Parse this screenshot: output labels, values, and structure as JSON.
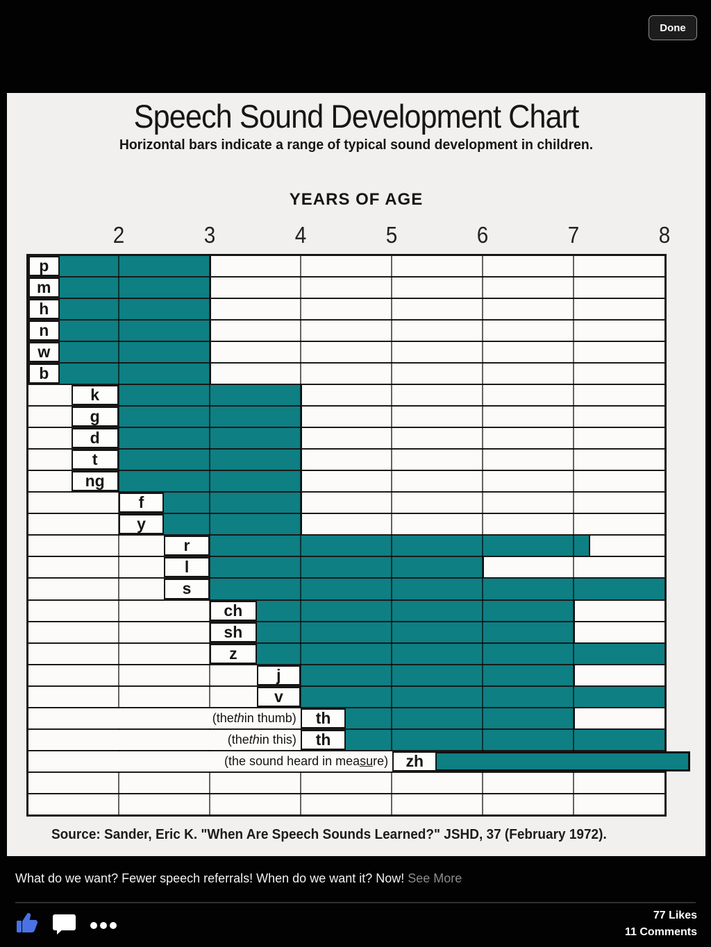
{
  "viewer": {
    "done_label": "Done"
  },
  "chart_data": {
    "type": "bar",
    "variant": "horizontal-range-gantt",
    "title": "Speech Sound Development Chart",
    "subtitle": "Horizontal bars indicate a range of typical sound development in children.",
    "xlabel": "YEARS OF AGE",
    "x_ticks": [
      2,
      3,
      4,
      5,
      6,
      7,
      8
    ],
    "xlim": [
      1.01,
      8.3
    ],
    "grid": "vertical-year-lines",
    "bar_color": "#0e7f83",
    "source": "Source:  Sander, Eric K. \"When Are Speech Sounds Learned?\" JSHD, 37  (February 1972).",
    "rows": [
      {
        "label": "p",
        "cell": [
          1.01,
          1.35
        ],
        "bar": [
          1.35,
          3
        ]
      },
      {
        "label": "m",
        "cell": [
          1.01,
          1.35
        ],
        "bar": [
          1.35,
          3
        ]
      },
      {
        "label": "h",
        "cell": [
          1.01,
          1.35
        ],
        "bar": [
          1.35,
          3
        ]
      },
      {
        "label": "n",
        "cell": [
          1.01,
          1.35
        ],
        "bar": [
          1.35,
          3
        ]
      },
      {
        "label": "w",
        "cell": [
          1.01,
          1.35
        ],
        "bar": [
          1.35,
          3
        ]
      },
      {
        "label": "b",
        "cell": [
          1.01,
          1.35
        ],
        "bar": [
          1.35,
          3
        ]
      },
      {
        "label": "k",
        "cell": [
          1.48,
          2
        ],
        "bar": [
          2,
          4
        ]
      },
      {
        "label": "g",
        "cell": [
          1.48,
          2
        ],
        "bar": [
          2,
          4
        ]
      },
      {
        "label": "d",
        "cell": [
          1.48,
          2
        ],
        "bar": [
          2,
          4
        ]
      },
      {
        "label": "t",
        "cell": [
          1.48,
          2
        ],
        "bar": [
          2,
          4
        ]
      },
      {
        "label": "ng",
        "cell": [
          1.48,
          2
        ],
        "bar": [
          2,
          4
        ]
      },
      {
        "label": "f",
        "cell": [
          2,
          2.5
        ],
        "bar": [
          2.5,
          4
        ]
      },
      {
        "label": "y",
        "cell": [
          2,
          2.5
        ],
        "bar": [
          2.5,
          4
        ]
      },
      {
        "label": "r",
        "cell": [
          2.5,
          3
        ],
        "bar": [
          3,
          7.17
        ]
      },
      {
        "label": "l",
        "cell": [
          2.5,
          3
        ],
        "bar": [
          3,
          6
        ]
      },
      {
        "label": "s",
        "cell": [
          2.5,
          3
        ],
        "bar": [
          3,
          8
        ]
      },
      {
        "label": "ch",
        "cell": [
          3,
          3.52
        ],
        "bar": [
          3.52,
          7
        ]
      },
      {
        "label": "sh",
        "cell": [
          3,
          3.52
        ],
        "bar": [
          3.52,
          7
        ]
      },
      {
        "label": "z",
        "cell": [
          3,
          3.52
        ],
        "bar": [
          3.52,
          8
        ]
      },
      {
        "label": "j",
        "cell": [
          3.52,
          4
        ],
        "bar": [
          4,
          7
        ]
      },
      {
        "label": "v",
        "cell": [
          3.52,
          4
        ],
        "bar": [
          4,
          8
        ]
      },
      {
        "label": "th",
        "note": "(the th in thumb)",
        "cell": [
          4,
          4.5
        ],
        "bar": [
          4.5,
          7
        ],
        "note_parts": [
          {
            "t": "(the "
          },
          {
            "t": "th",
            "style": "i"
          },
          {
            "t": " in thumb)"
          }
        ]
      },
      {
        "label": "th",
        "note": "(the th in this)",
        "cell": [
          4,
          4.5
        ],
        "bar": [
          4.5,
          8
        ],
        "note_parts": [
          {
            "t": "(the "
          },
          {
            "t": "th",
            "style": "i"
          },
          {
            "t": " in this)"
          }
        ]
      },
      {
        "label": "zh",
        "note": "(the sound heard in measure)",
        "cell": [
          5.01,
          5.5
        ],
        "bar": [
          5.5,
          8.26
        ],
        "outset": true,
        "note_parts": [
          {
            "t": "(the sound heard in mea"
          },
          {
            "t": "su",
            "style": "u"
          },
          {
            "t": "re)"
          }
        ]
      },
      {
        "label": ""
      },
      {
        "label": ""
      }
    ]
  },
  "post": {
    "caption": "What do we want? Fewer speech referrals!  When do we want it? Now!",
    "see_more": "See More",
    "likes": "77 Likes",
    "comments": "11 Comments"
  },
  "colors": {
    "bar_teal": "#0e7f83",
    "like_blue": "#4a72e4",
    "panel_bg": "#f1f0ee",
    "background": "#020202"
  },
  "icons": [
    "thumbs-up-icon",
    "comment-bubble-icon",
    "ellipsis-more-icon"
  ]
}
